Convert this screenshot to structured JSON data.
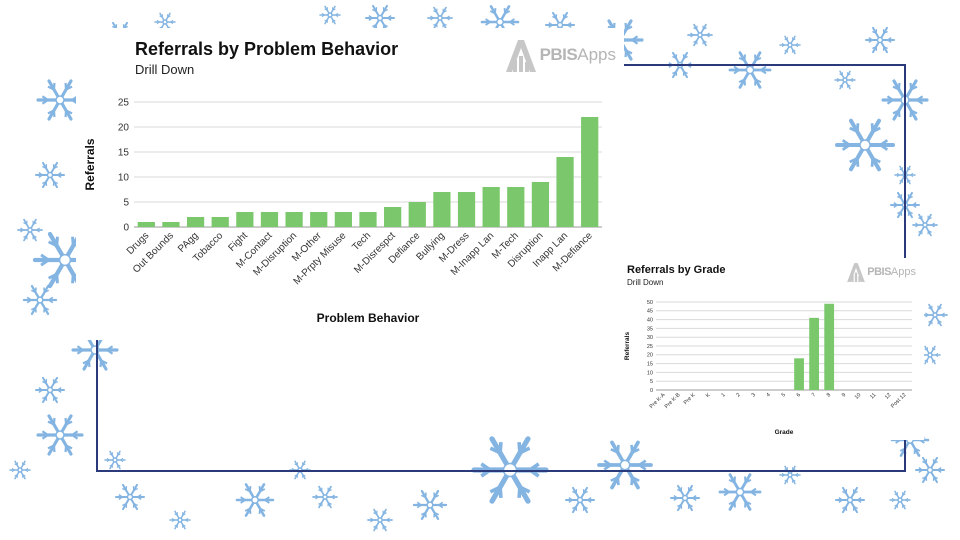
{
  "theme": {
    "bar_color": "#7bc86c",
    "grid_color": "#d9d9d9",
    "frame_color": "#2b3a7a",
    "snowflake_color": "#6fa8dc"
  },
  "logo": {
    "brand": "PBIS",
    "suffix": "Apps"
  },
  "chart_data": [
    {
      "type": "bar",
      "title": "Referrals by Problem Behavior",
      "subtitle": "Drill Down",
      "xlabel": "Problem Behavior",
      "ylabel": "Referrals",
      "ylim": [
        0,
        25
      ],
      "yticks": [
        0,
        5,
        10,
        15,
        20,
        25
      ],
      "grid": true,
      "categories": [
        "Drugs",
        "Out Bounds",
        "PAgg",
        "Tobacco",
        "Fight",
        "M-Contact",
        "M-Disruption",
        "M-Other",
        "M-Prpty Misuse",
        "Tech",
        "M-Disrespct",
        "Defiance",
        "Bullying",
        "M-Dress",
        "M-Inapp Lan",
        "M-Tech",
        "Disruption",
        "Inapp Lan",
        "M-Defiance"
      ],
      "values": [
        1,
        1,
        2,
        2,
        3,
        3,
        3,
        3,
        3,
        3,
        4,
        5,
        7,
        7,
        8,
        8,
        9,
        14,
        22
      ]
    },
    {
      "type": "bar",
      "title": "Referrals by Grade",
      "subtitle": "Drill Down",
      "xlabel": "Grade",
      "ylabel": "Referrals",
      "ylim": [
        0,
        50
      ],
      "yticks": [
        0,
        5,
        10,
        15,
        20,
        25,
        30,
        35,
        40,
        45,
        50
      ],
      "grid": true,
      "categories": [
        "Pre K-A",
        "Pre K-B",
        "Pre K",
        "K",
        "1",
        "2",
        "3",
        "4",
        "5",
        "6",
        "7",
        "8",
        "9",
        "10",
        "11",
        "12",
        "Post 12"
      ],
      "values": [
        0,
        0,
        0,
        0,
        0,
        0,
        0,
        0,
        0,
        18,
        41,
        49,
        0,
        0,
        0,
        0,
        0
      ]
    }
  ]
}
